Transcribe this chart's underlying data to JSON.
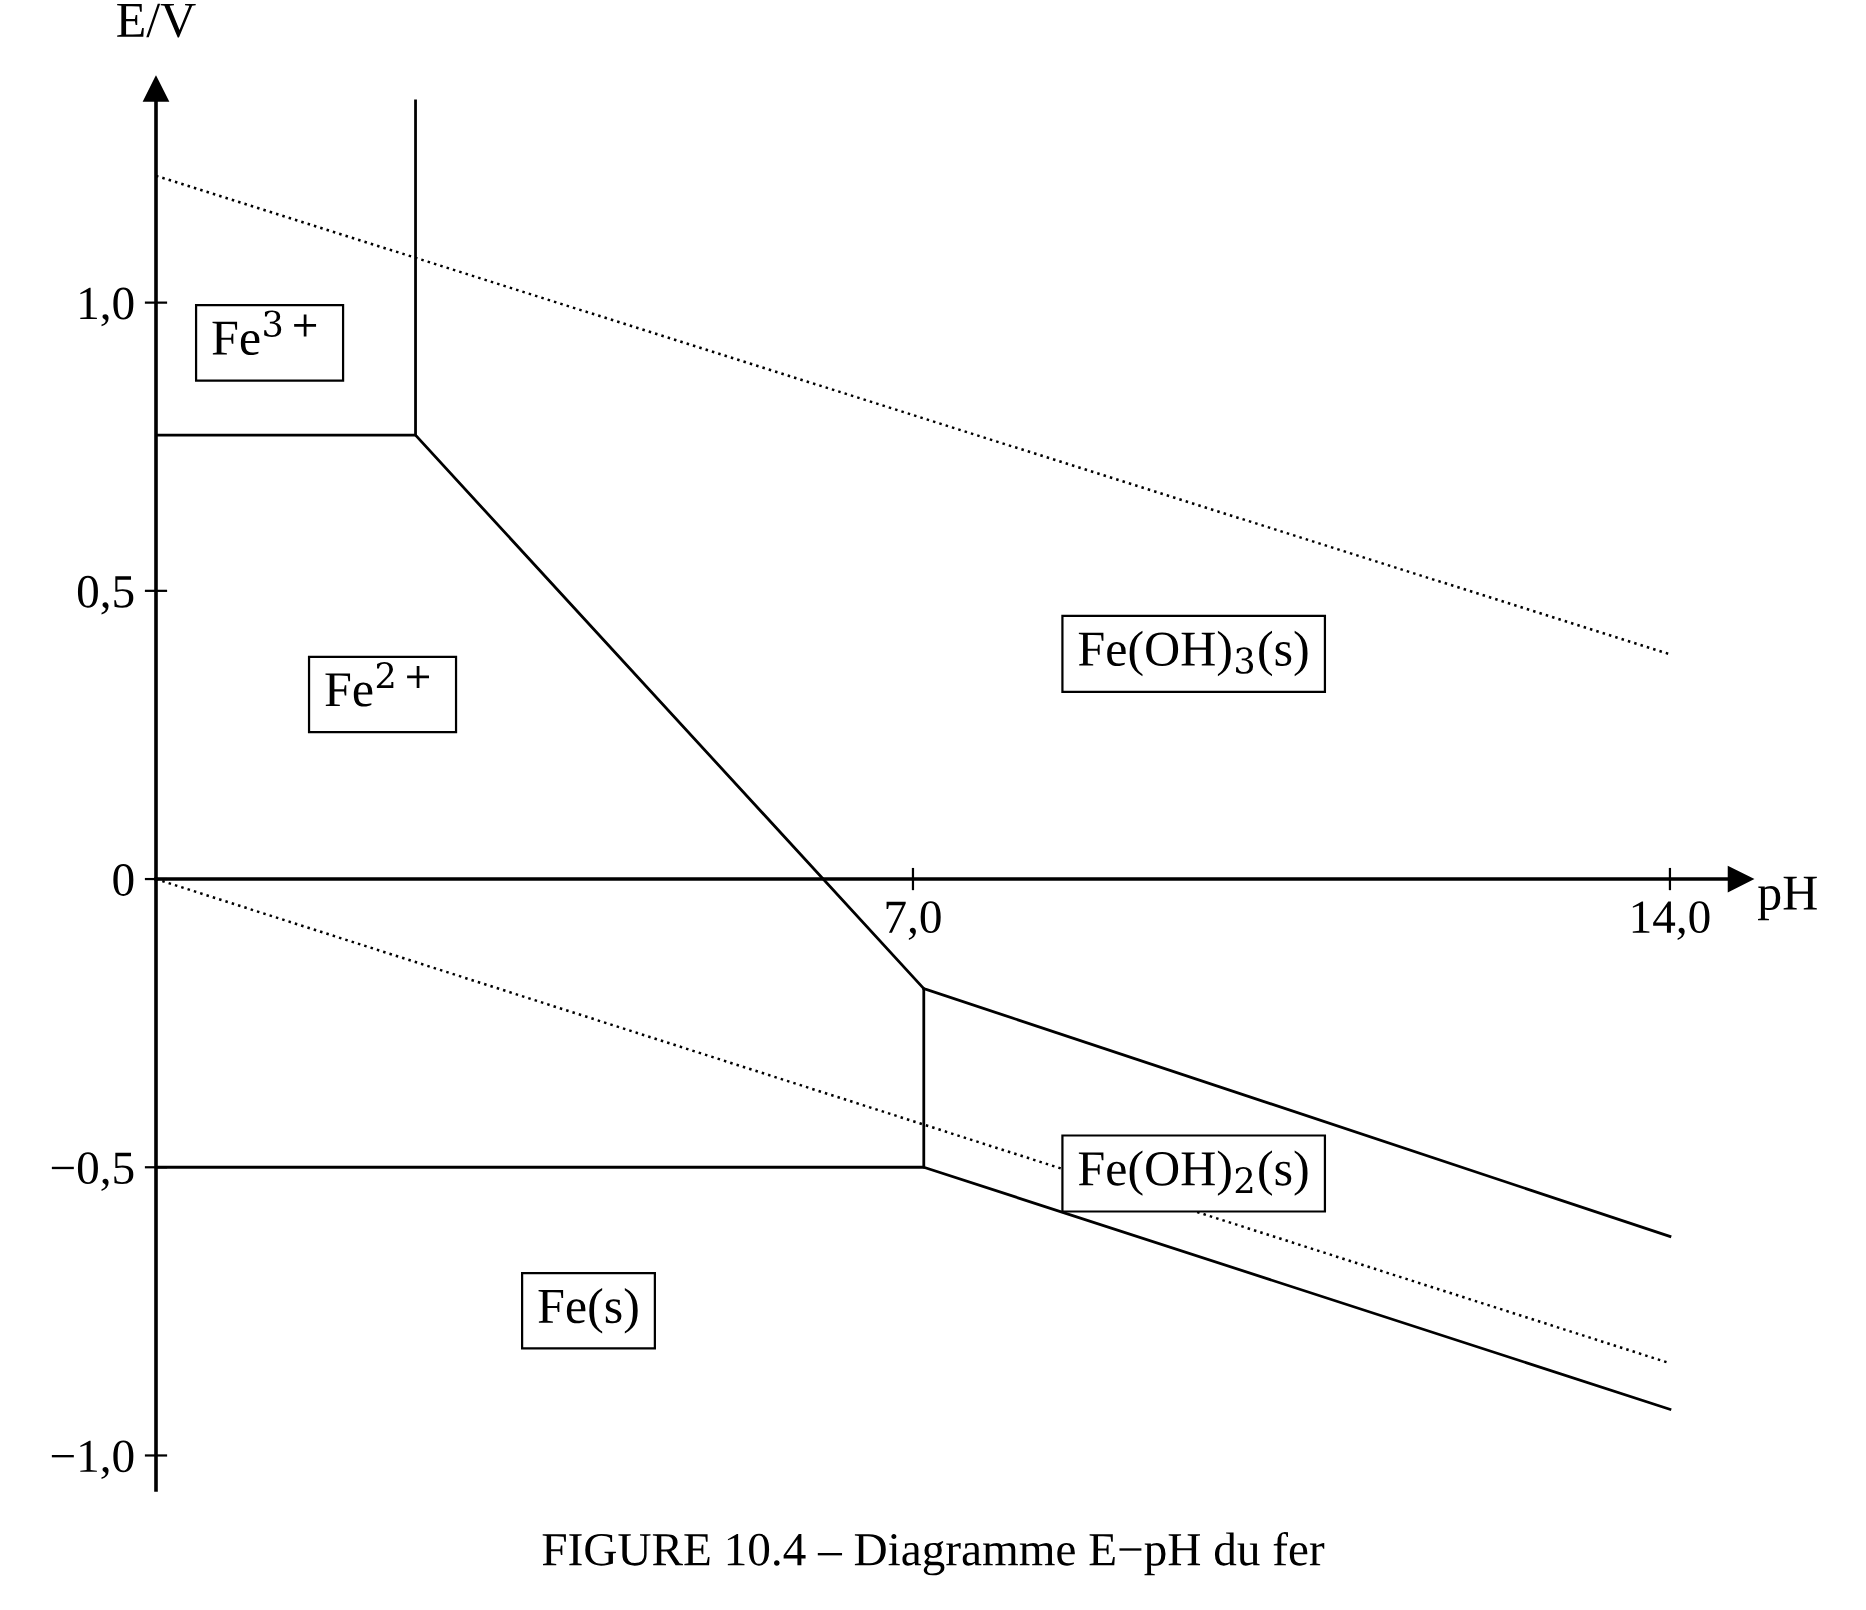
{
  "chart_data": {
    "type": "line",
    "xlabel": "pH",
    "ylabel": "E/V",
    "xlim": [
      0,
      14.65
    ],
    "ylim": [
      -1.06,
      1.37
    ],
    "xticks": [
      {
        "value": 7,
        "label": "7,0"
      },
      {
        "value": 14,
        "label": "14,0"
      }
    ],
    "yticks": [
      {
        "value": -1,
        "label": "−1,0"
      },
      {
        "value": -0.5,
        "label": "−0,5"
      },
      {
        "value": 0,
        "label": "0"
      },
      {
        "value": 0.5,
        "label": "0,5"
      },
      {
        "value": 1,
        "label": "1,0"
      }
    ],
    "series": [
      {
        "color": "#000000",
        "line_style": "solid",
        "x": [
          0,
          2.4,
          2.4
        ],
        "values": [
          0.77,
          0.77,
          1.35
        ]
      },
      {
        "color": "#000000",
        "line_style": "solid",
        "x": [
          2.4,
          7.1,
          7.1,
          14
        ],
        "values": [
          0.77,
          -0.19,
          -0.5,
          -0.92
        ]
      },
      {
        "color": "#000000",
        "line_style": "solid",
        "x": [
          0,
          7.1
        ],
        "values": [
          -0.5,
          -0.5
        ]
      },
      {
        "color": "#000000",
        "line_style": "solid",
        "x": [
          7.1,
          14
        ],
        "values": [
          -0.19,
          -0.62
        ]
      },
      {
        "color": "#000000",
        "line_style": "dotted",
        "x": [
          0,
          14
        ],
        "values": [
          1.22,
          0.39
        ]
      },
      {
        "color": "#000000",
        "line_style": "dotted",
        "x": [
          0,
          14
        ],
        "values": [
          0,
          -0.84
        ]
      }
    ],
    "annotations": [
      "Fe$^{3+}$",
      "Fe$^{2+}$",
      "Fe(OH)$_{3}$(s)",
      "Fe(OH)$_{2}$(s)",
      "Fe(s)",
      "FIGURE 10.4 – Diagramme E−pH du fer"
    ]
  }
}
